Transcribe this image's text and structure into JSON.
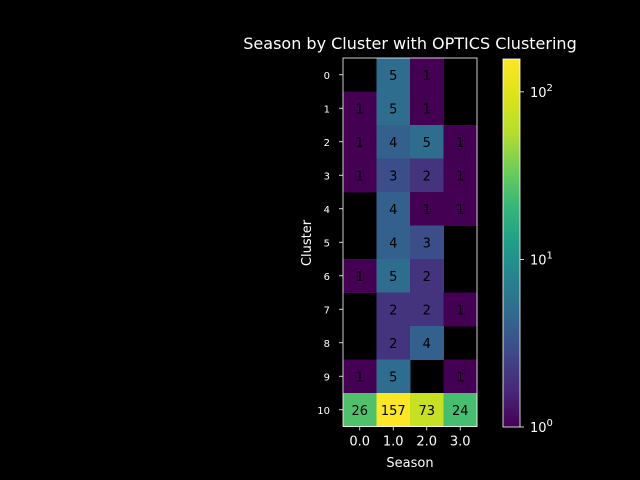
{
  "chart_data": {
    "type": "heatmap",
    "title": "Season by Cluster with OPTICS Clustering",
    "xlabel": "Season",
    "ylabel": "Cluster",
    "x_categories": [
      "0.0",
      "1.0",
      "2.0",
      "3.0"
    ],
    "y_categories": [
      "0",
      "1",
      "2",
      "3",
      "4",
      "5",
      "6",
      "7",
      "8",
      "9",
      "10"
    ],
    "values": [
      [
        null,
        5,
        1,
        null
      ],
      [
        1,
        5,
        1,
        null
      ],
      [
        1,
        4,
        5,
        1
      ],
      [
        1,
        3,
        2,
        1
      ],
      [
        null,
        4,
        1,
        1
      ],
      [
        null,
        4,
        3,
        null
      ],
      [
        1,
        5,
        2,
        null
      ],
      [
        null,
        2,
        2,
        1
      ],
      [
        null,
        2,
        4,
        null
      ],
      [
        1,
        5,
        null,
        1
      ],
      [
        26,
        157,
        73,
        24
      ]
    ],
    "color_scale": "log",
    "colormap": "viridis",
    "vmin": 1,
    "vmax": 157,
    "colorbar_ticks": [
      {
        "base": "10",
        "exp": "0",
        "value": 1
      },
      {
        "base": "10",
        "exp": "1",
        "value": 10
      },
      {
        "base": "10",
        "exp": "2",
        "value": 100
      }
    ],
    "background_color": "#000000"
  }
}
